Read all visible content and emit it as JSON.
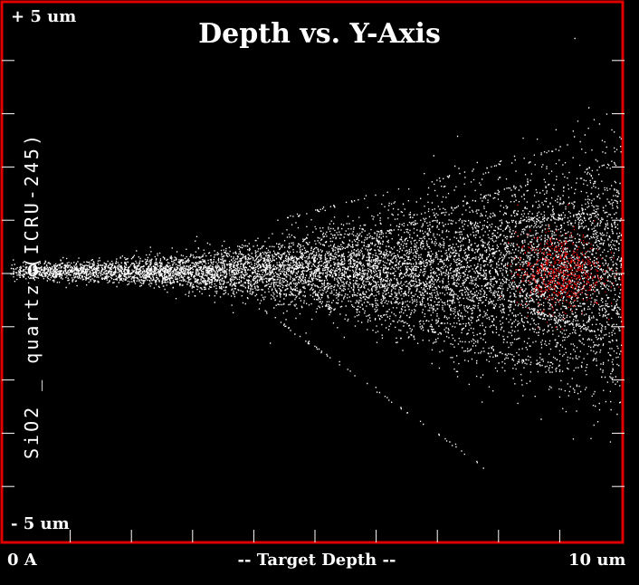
{
  "chart_data": {
    "type": "scatter",
    "title": "Depth vs. Y-Axis",
    "target_label": "SiO2 _ quartz (ICRU-245)",
    "x_axis": {
      "label": "-- Target Depth --",
      "min_label": "0 A",
      "max_label": "10 um"
    },
    "y_axis": {
      "max_label": "+ 5 um",
      "min_label": "- 5 um",
      "zero_label": "0"
    },
    "x_range_um": [
      0,
      10
    ],
    "y_range_um": [
      -5,
      5
    ],
    "ion_colors": {
      "ions": "#ffffff",
      "stopped_ions": "#ff0000"
    },
    "frame_color": "#e00000",
    "ticks_per_axis": 10
  }
}
